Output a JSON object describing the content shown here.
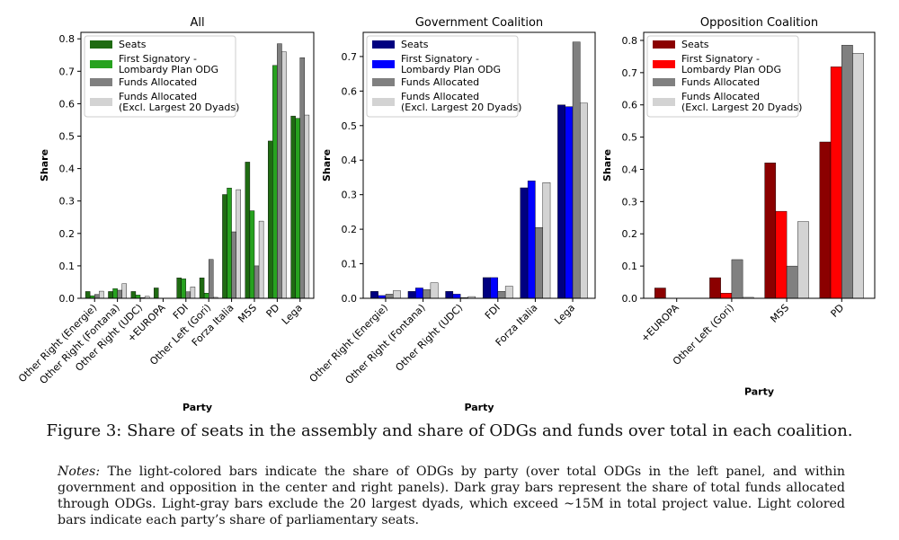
{
  "chart_data": [
    {
      "type": "bar",
      "title": "All",
      "xlabel": "Party",
      "ylabel": "Share",
      "ylim": [
        0,
        0.82
      ],
      "yticks": [
        "0.0",
        "0.1",
        "0.2",
        "0.3",
        "0.4",
        "0.5",
        "0.6",
        "0.7",
        "0.8"
      ],
      "legend_position": "top-left",
      "categories": [
        "Other Right (Energie)",
        "Other Right (Fontana)",
        "Other Right (UDC)",
        "+EUROPA",
        "FDI",
        "Other Left (Gori)",
        "Forza Italia",
        "M5S",
        "PD",
        "Lega"
      ],
      "series": [
        {
          "name": "Seats",
          "color": "#1f6b12",
          "values": [
            0.021,
            0.021,
            0.021,
            0.032,
            0.063,
            0.063,
            0.32,
            0.42,
            0.485,
            0.562
          ]
        },
        {
          "name": "First Signatory - Lombardy Plan ODG",
          "color": "#27a21f",
          "values": [
            0.008,
            0.03,
            0.01,
            0.0,
            0.06,
            0.016,
            0.34,
            0.27,
            0.718,
            0.555
          ]
        },
        {
          "name": "Funds Allocated",
          "color": "#808080",
          "values": [
            0.012,
            0.025,
            0.002,
            0.0,
            0.02,
            0.12,
            0.205,
            0.1,
            0.785,
            0.742
          ]
        },
        {
          "name": "Funds Allocated (Excl. Largest 20 Dyads)",
          "color": "#d3d3d3",
          "values": [
            0.022,
            0.045,
            0.006,
            0.0,
            0.035,
            0.003,
            0.335,
            0.238,
            0.76,
            0.565
          ]
        }
      ]
    },
    {
      "type": "bar",
      "title": "Government Coalition",
      "xlabel": "Party",
      "ylabel": "Share",
      "ylim": [
        0,
        0.77
      ],
      "yticks": [
        "0.0",
        "0.1",
        "0.2",
        "0.3",
        "0.4",
        "0.5",
        "0.6",
        "0.7"
      ],
      "legend_position": "top-left",
      "categories": [
        "Other Right (Energie)",
        "Other Right (Fontana)",
        "Other Right (UDC)",
        "FDI",
        "Forza Italia",
        "Lega"
      ],
      "series": [
        {
          "name": "Seats",
          "color": "#000080",
          "values": [
            0.02,
            0.02,
            0.02,
            0.06,
            0.32,
            0.56
          ]
        },
        {
          "name": "First Signatory - Lombardy Plan ODG",
          "color": "#0000ff",
          "values": [
            0.008,
            0.03,
            0.012,
            0.06,
            0.34,
            0.555
          ]
        },
        {
          "name": "Funds Allocated",
          "color": "#808080",
          "values": [
            0.012,
            0.025,
            0.002,
            0.02,
            0.205,
            0.742
          ]
        },
        {
          "name": "Funds Allocated (Excl. Largest 20 Dyads)",
          "color": "#d3d3d3",
          "values": [
            0.022,
            0.045,
            0.005,
            0.035,
            0.335,
            0.565
          ]
        }
      ]
    },
    {
      "type": "bar",
      "title": "Opposition Coalition",
      "xlabel": "Party",
      "ylabel": "Share",
      "ylim": [
        0,
        0.825
      ],
      "yticks": [
        "0.0",
        "0.1",
        "0.2",
        "0.3",
        "0.4",
        "0.5",
        "0.6",
        "0.7",
        "0.8"
      ],
      "legend_position": "top-left",
      "categories": [
        "+EUROPA",
        "Other Left (Gori)",
        "M5S",
        "PD"
      ],
      "series": [
        {
          "name": "Seats",
          "color": "#8b0000",
          "values": [
            0.032,
            0.064,
            0.42,
            0.485
          ]
        },
        {
          "name": "First Signatory - Lombardy Plan ODG",
          "color": "#ff0000",
          "values": [
            0.0,
            0.016,
            0.27,
            0.718
          ]
        },
        {
          "name": "Funds Allocated",
          "color": "#808080",
          "values": [
            0.0,
            0.12,
            0.1,
            0.785
          ]
        },
        {
          "name": "Funds Allocated (Excl. Largest 20 Dyads)",
          "color": "#d3d3d3",
          "values": [
            0.0,
            0.003,
            0.238,
            0.76
          ]
        }
      ]
    }
  ],
  "caption": "Figure 3: Share of seats in the assembly and share of ODGs and funds over total in each coalition.",
  "notes": {
    "label": "Notes:",
    "text": "The light-colored bars indicate the share of ODGs by party (over total ODGs in the left panel, and within government and opposition in the center and right panels). Dark gray bars represent the share of total funds allocated through ODGs. Light-gray bars exclude the 20 largest dyads, which exceed ~15M in total project value. Light colored bars indicate each party’s share of parliamentary seats."
  }
}
